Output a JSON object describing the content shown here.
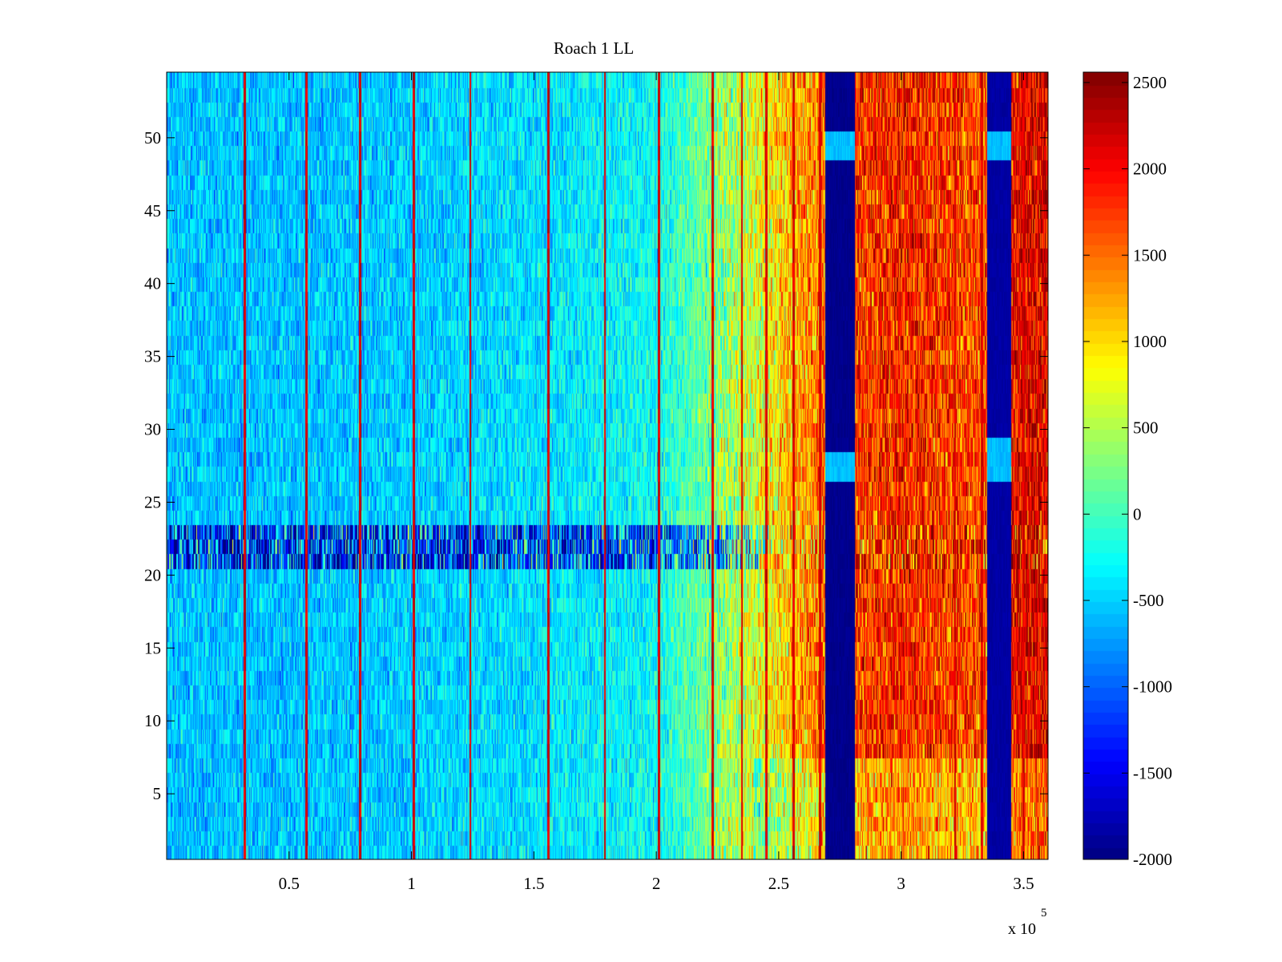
{
  "chart_data": {
    "type": "heatmap",
    "title": "Roach 1 LL",
    "xlabel": "",
    "ylabel": "",
    "x_scale_label": "x 10",
    "x_scale_exponent": "5",
    "xlim": [
      0,
      360000
    ],
    "ylim": [
      0.5,
      54.5
    ],
    "n_rows": 54,
    "x_ticks": [
      {
        "value": 50000,
        "label": "0.5"
      },
      {
        "value": 100000,
        "label": "1"
      },
      {
        "value": 150000,
        "label": "1.5"
      },
      {
        "value": 200000,
        "label": "2"
      },
      {
        "value": 250000,
        "label": "2.5"
      },
      {
        "value": 300000,
        "label": "3"
      },
      {
        "value": 350000,
        "label": "3.5"
      }
    ],
    "y_ticks": [
      {
        "value": 5,
        "label": "5"
      },
      {
        "value": 10,
        "label": "10"
      },
      {
        "value": 15,
        "label": "15"
      },
      {
        "value": 20,
        "label": "20"
      },
      {
        "value": 25,
        "label": "25"
      },
      {
        "value": 30,
        "label": "30"
      },
      {
        "value": 35,
        "label": "35"
      },
      {
        "value": 40,
        "label": "40"
      },
      {
        "value": 45,
        "label": "45"
      },
      {
        "value": 50,
        "label": "50"
      }
    ],
    "colorbar": {
      "colormap": "jet",
      "clim": [
        -2000,
        2560
      ],
      "ticks": [
        {
          "value": 2500,
          "label": "2500"
        },
        {
          "value": 2000,
          "label": "2000"
        },
        {
          "value": 1500,
          "label": "1500"
        },
        {
          "value": 1000,
          "label": "1000"
        },
        {
          "value": 500,
          "label": "500"
        },
        {
          "value": 0,
          "label": "0"
        },
        {
          "value": -500,
          "label": "-500"
        },
        {
          "value": -1000,
          "label": "-1000"
        },
        {
          "value": -1500,
          "label": "-1500"
        },
        {
          "value": -2000,
          "label": "-2000"
        }
      ]
    },
    "baseline_by_x": [
      {
        "x": 0,
        "value": -550
      },
      {
        "x": 50000,
        "value": -550
      },
      {
        "x": 100000,
        "value": -500
      },
      {
        "x": 150000,
        "value": -400
      },
      {
        "x": 200000,
        "value": -250
      },
      {
        "x": 220000,
        "value": 200
      },
      {
        "x": 240000,
        "value": 700
      },
      {
        "x": 260000,
        "value": 1300
      },
      {
        "x": 269000,
        "value": 1550
      },
      {
        "x": 282000,
        "value": 1750
      },
      {
        "x": 300000,
        "value": 1900
      },
      {
        "x": 320000,
        "value": 1750
      },
      {
        "x": 334000,
        "value": 1650
      },
      {
        "x": 348000,
        "value": 2050
      },
      {
        "x": 360000,
        "value": 2150
      }
    ],
    "blocked_bands": [
      {
        "x_from": 269000,
        "x_to": 281000,
        "value": -2000,
        "light_rows": [
          27,
          28,
          49,
          50
        ]
      },
      {
        "x_from": 335000,
        "x_to": 345000,
        "value": -1900,
        "light_rows": [
          27,
          28,
          29,
          49,
          50
        ]
      }
    ],
    "noisy_rows": [
      21,
      22,
      23
    ],
    "spike_columns_x": [
      32000,
      57000,
      79000,
      101000,
      124000,
      156000,
      179000,
      201000,
      223000,
      235000,
      245000,
      256000,
      267000,
      322000,
      333000,
      350000
    ]
  }
}
